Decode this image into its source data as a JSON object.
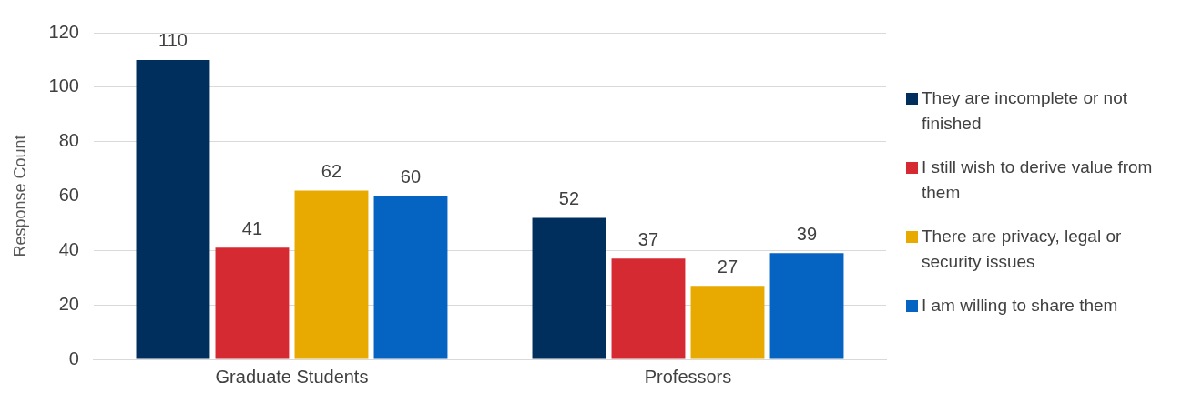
{
  "chart_data": {
    "type": "bar",
    "ylabel": "Response Count",
    "categories": [
      "Graduate Students",
      "Professors"
    ],
    "series": [
      {
        "name": "They are incomplete or not finished",
        "color": "#002f5e",
        "values": [
          110,
          52
        ]
      },
      {
        "name": "I still wish to derive value from them",
        "color": "#d62a33",
        "values": [
          41,
          37
        ]
      },
      {
        "name": "There are privacy, legal or security issues",
        "color": "#e8a900",
        "values": [
          62,
          27
        ]
      },
      {
        "name": "I am willing to share them",
        "color": "#0563c1",
        "values": [
          60,
          39
        ]
      }
    ],
    "ylim": [
      0,
      120
    ],
    "yticks": [
      0,
      20,
      40,
      60,
      80,
      100,
      120
    ],
    "grid": "y",
    "legend": "right",
    "data_labels": true
  }
}
